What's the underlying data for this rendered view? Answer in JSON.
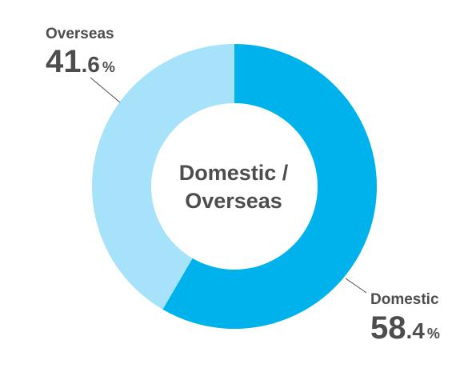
{
  "chart_data": {
    "type": "pie",
    "variant": "donut",
    "center_label": [
      "Domestic /",
      "Overseas"
    ],
    "slices": [
      {
        "name": "Domestic",
        "value": 58.4,
        "int": "58",
        "dec": ".4",
        "unit": "%",
        "color": "#00b2ec"
      },
      {
        "name": "Overseas",
        "value": 41.6,
        "int": "41",
        "dec": ".6",
        "unit": "%",
        "color": "#a6e3fb"
      }
    ],
    "start_angle": "12 o'clock",
    "direction": "clockwise",
    "label_placement": {
      "Domestic": "bottom-right",
      "Overseas": "top-left"
    },
    "leader_line_color": "#4d4d4d"
  }
}
